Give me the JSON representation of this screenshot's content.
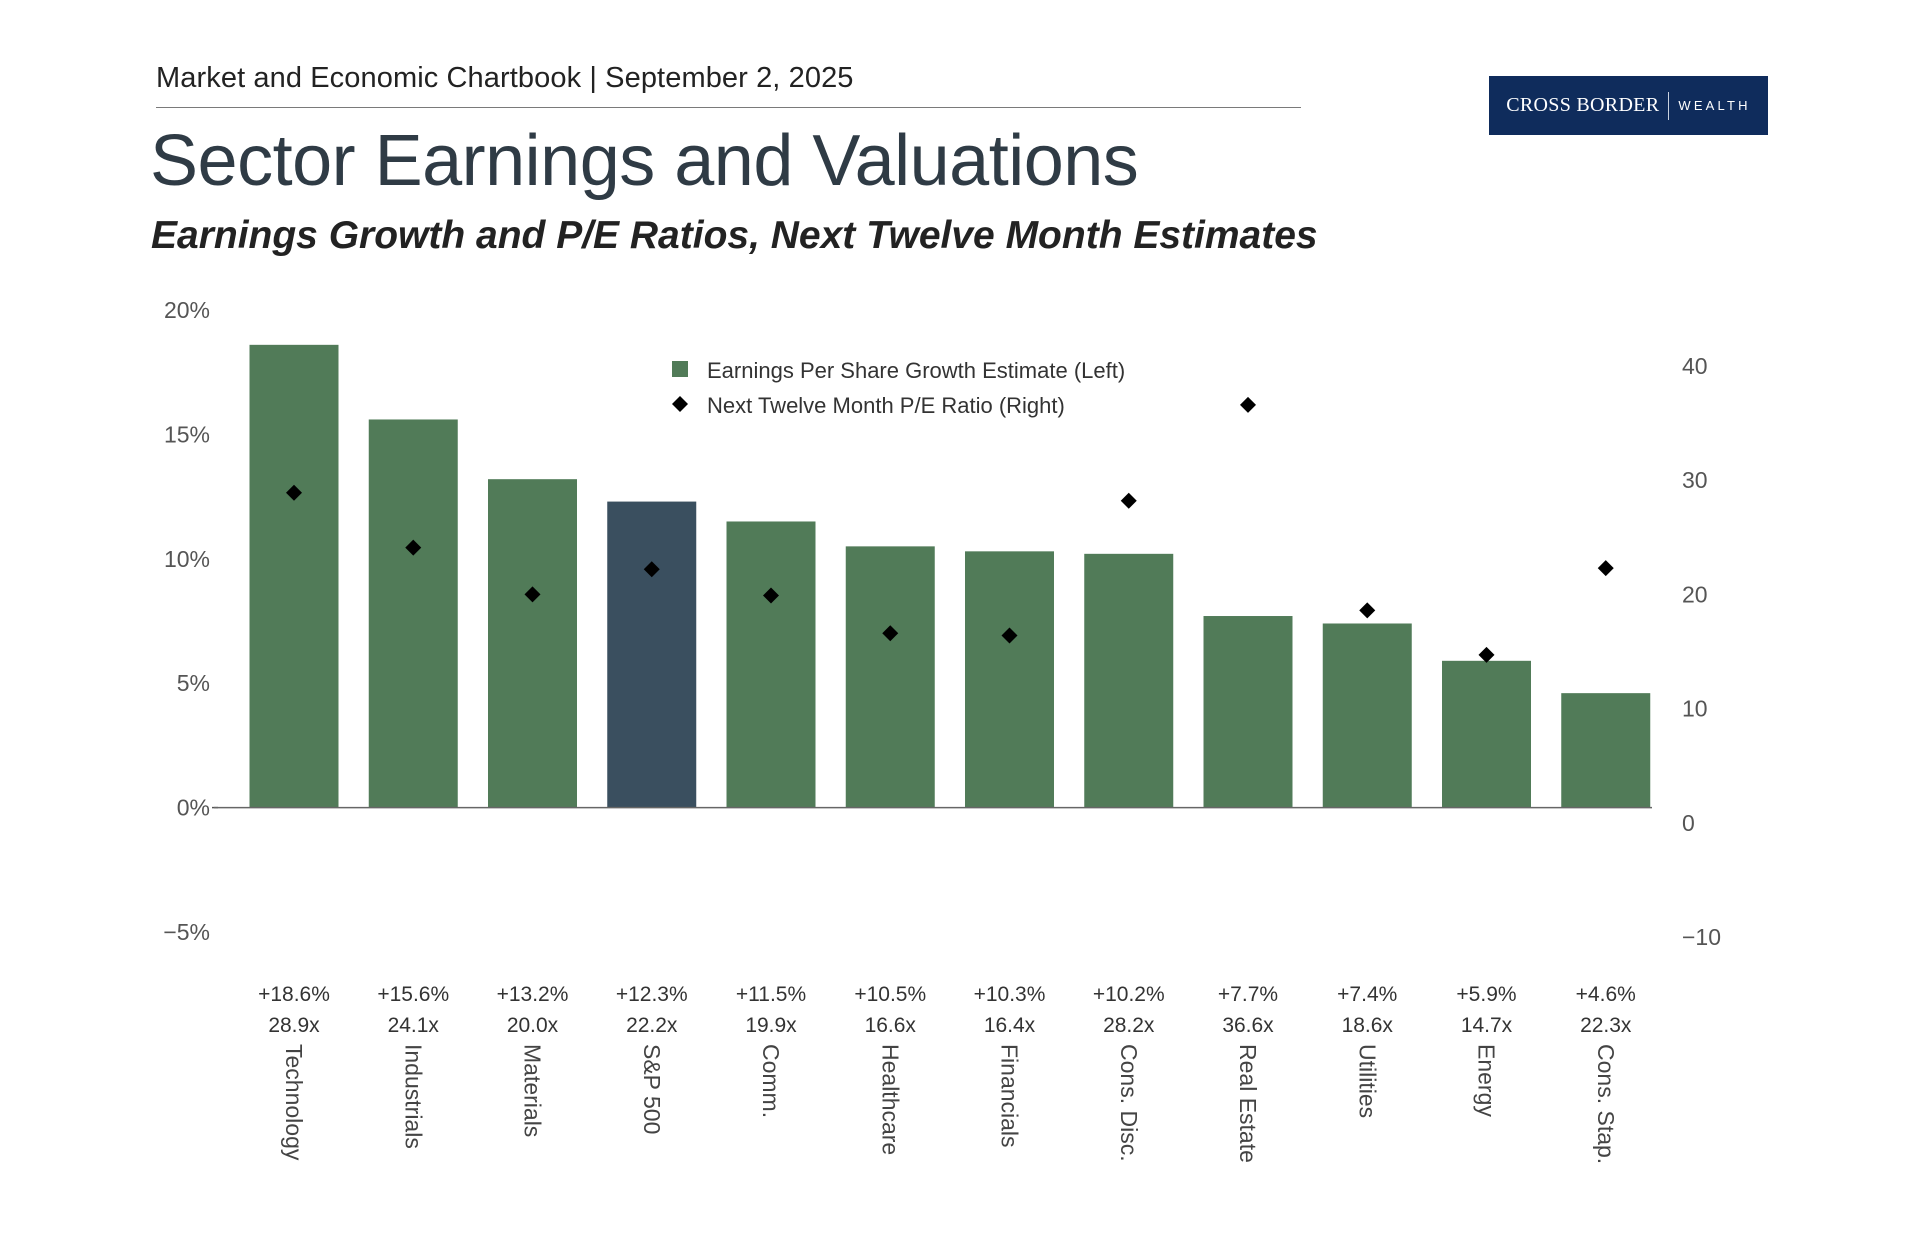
{
  "header": {
    "chartbook": "Market and Economic Chartbook | September 2, 2025",
    "logo_main": "CROSS BORDER",
    "logo_sub": "WEALTH"
  },
  "title": "Sector Earnings and Valuations",
  "subtitle": "Earnings Growth and P/E Ratios, Next Twelve Month Estimates",
  "chart_data": {
    "type": "bar",
    "title": "Sector Earnings and Valuations",
    "subtitle": "Earnings Growth and P/E Ratios, Next Twelve Month Estimates",
    "categories": [
      "Technology",
      "Industrials",
      "Materials",
      "S&P 500",
      "Comm.",
      "Healthcare",
      "Financials",
      "Cons. Disc.",
      "Real Estate",
      "Utilities",
      "Energy",
      "Cons. Stap."
    ],
    "series": [
      {
        "name": "Earnings Per Share Growth Estimate (Left)",
        "axis": "left",
        "type": "bar",
        "values": [
          18.6,
          15.6,
          13.2,
          12.3,
          11.5,
          10.5,
          10.3,
          10.2,
          7.7,
          7.4,
          5.9,
          4.6
        ],
        "labels": [
          "+18.6%",
          "+15.6%",
          "+13.2%",
          "+12.3%",
          "+11.5%",
          "+10.5%",
          "+10.3%",
          "+10.2%",
          "+7.7%",
          "+7.4%",
          "+5.9%",
          "+4.6%"
        ]
      },
      {
        "name": "Next Twelve Month P/E Ratio (Right)",
        "axis": "right",
        "type": "scatter",
        "marker": "diamond",
        "values": [
          28.9,
          24.1,
          20.0,
          22.2,
          19.9,
          16.6,
          16.4,
          28.2,
          36.6,
          18.6,
          14.7,
          22.3
        ],
        "labels": [
          "28.9x",
          "24.1x",
          "20.0x",
          "22.2x",
          "19.9x",
          "16.6x",
          "16.4x",
          "28.2x",
          "36.6x",
          "18.6x",
          "14.7x",
          "22.3x"
        ]
      }
    ],
    "highlight_category": "S&P 500",
    "y_left": {
      "min": -5,
      "max": 20,
      "ticks": [
        "20%",
        "15%",
        "10%",
        "5%",
        "0%",
        "−5%"
      ]
    },
    "y_right": {
      "min": -10,
      "max": 40,
      "ticks": [
        "40",
        "30",
        "20",
        "10",
        "0",
        "−10"
      ]
    },
    "legend_position": "top-center",
    "colors": {
      "bar": "#517b58",
      "highlight": "#3a4f5f",
      "marker": "#000000",
      "axis": "#555555"
    }
  }
}
